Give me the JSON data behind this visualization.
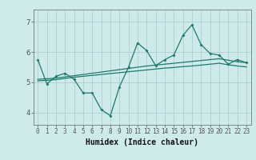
{
  "xlabel": "Humidex (Indice chaleur)",
  "background_color": "#ceeaea",
  "grid_color": "#aad0d0",
  "line_color": "#1e7b6b",
  "x_ticks": [
    0,
    1,
    2,
    3,
    4,
    5,
    6,
    7,
    8,
    9,
    10,
    11,
    12,
    13,
    14,
    15,
    16,
    17,
    18,
    19,
    20,
    21,
    22,
    23
  ],
  "y_ticks": [
    4,
    5,
    6,
    7
  ],
  "ylim": [
    3.6,
    7.4
  ],
  "xlim": [
    -0.5,
    23.5
  ],
  "series1_y": [
    5.75,
    4.95,
    5.2,
    5.3,
    5.1,
    4.65,
    4.65,
    4.1,
    3.9,
    4.85,
    5.5,
    6.3,
    6.05,
    5.55,
    5.75,
    5.9,
    6.55,
    6.9,
    6.25,
    5.95,
    5.9,
    5.6,
    5.75,
    5.65
  ],
  "series2_y": [
    5.1,
    5.12,
    5.14,
    5.18,
    5.22,
    5.26,
    5.3,
    5.34,
    5.38,
    5.42,
    5.46,
    5.5,
    5.54,
    5.57,
    5.6,
    5.63,
    5.66,
    5.69,
    5.72,
    5.75,
    5.78,
    5.73,
    5.68,
    5.65
  ],
  "series3_y": [
    5.05,
    5.07,
    5.09,
    5.13,
    5.17,
    5.2,
    5.23,
    5.26,
    5.29,
    5.32,
    5.35,
    5.38,
    5.41,
    5.44,
    5.47,
    5.49,
    5.52,
    5.54,
    5.57,
    5.6,
    5.63,
    5.58,
    5.54,
    5.51
  ]
}
